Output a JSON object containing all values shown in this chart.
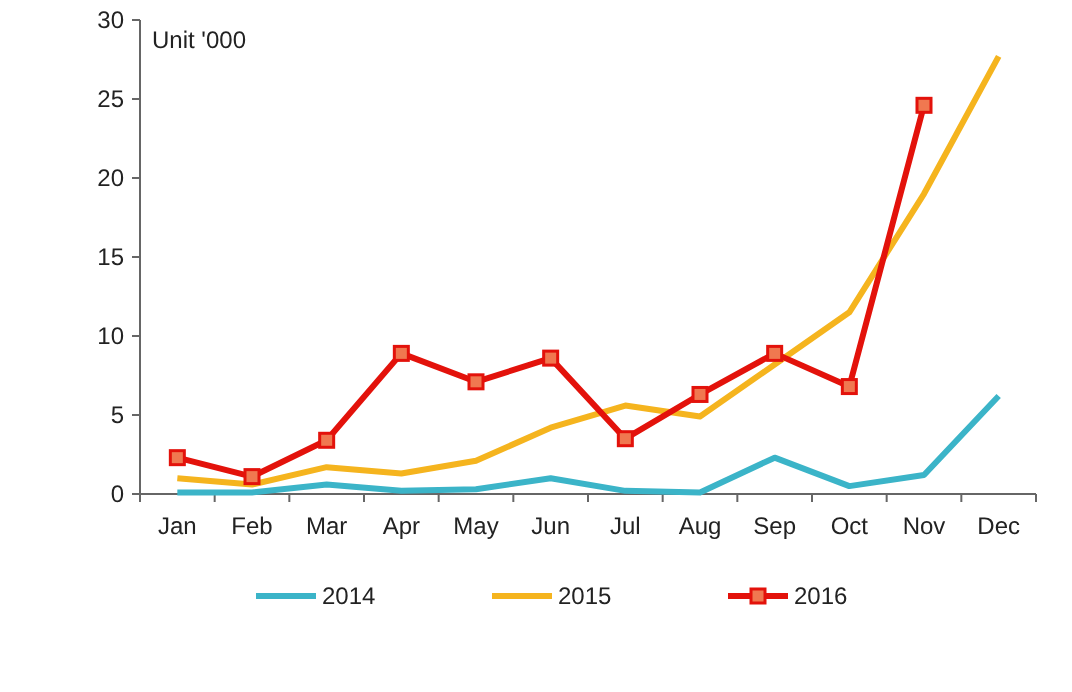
{
  "chart_data": {
    "type": "line",
    "ylabel": "Unit '000",
    "categories": [
      "Jan",
      "Feb",
      "Mar",
      "Apr",
      "May",
      "Jun",
      "Jul",
      "Aug",
      "Sep",
      "Oct",
      "Nov",
      "Dec"
    ],
    "ylim": [
      0,
      30
    ],
    "yticks": [
      0,
      5,
      10,
      15,
      20,
      25,
      30
    ],
    "grid": false,
    "legend": "bottom",
    "series": [
      {
        "name": "2014",
        "color": "#3bb4c8",
        "marker": "none",
        "values": [
          0.1,
          0.1,
          0.6,
          0.2,
          0.3,
          1.0,
          0.2,
          0.1,
          2.3,
          0.5,
          1.2,
          6.2
        ]
      },
      {
        "name": "2015",
        "color": "#f5b41e",
        "marker": "none",
        "values": [
          1.0,
          0.6,
          1.7,
          1.3,
          2.1,
          4.2,
          5.6,
          4.9,
          8.2,
          11.5,
          19,
          27.7
        ]
      },
      {
        "name": "2016",
        "color": "#e3120b",
        "marker": "square",
        "values": [
          2.3,
          1.1,
          3.4,
          8.9,
          7.1,
          8.6,
          3.5,
          6.3,
          8.9,
          6.8,
          24.6,
          null
        ]
      }
    ]
  }
}
